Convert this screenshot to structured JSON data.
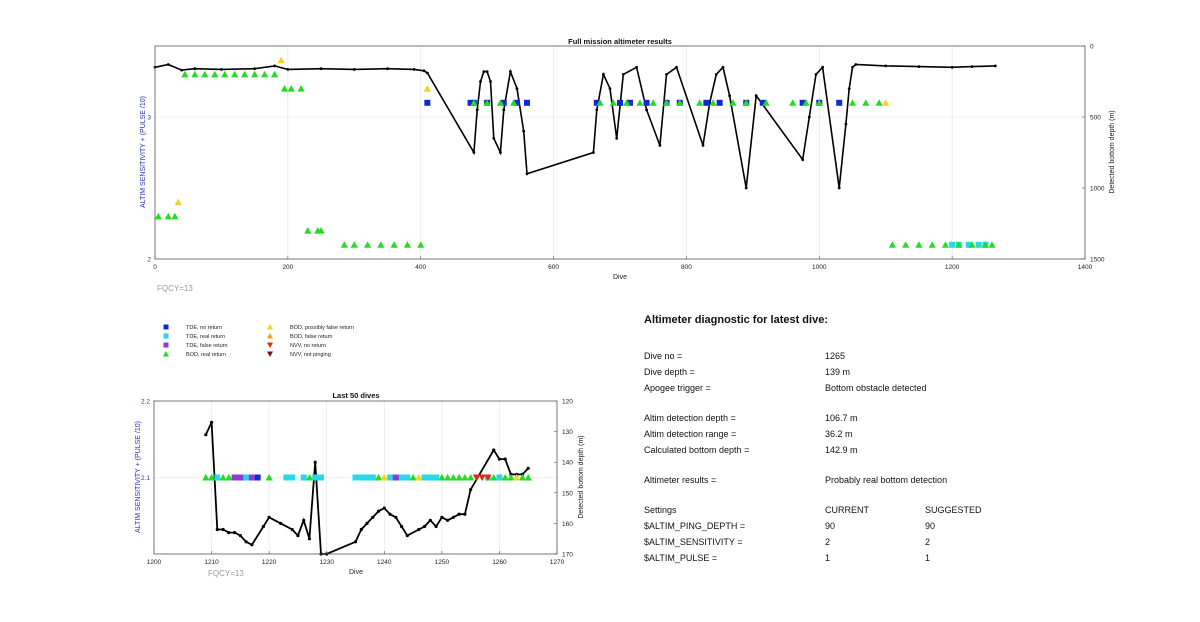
{
  "top_chart": {
    "title": "Full mission altimeter results",
    "xlabel": "Dive",
    "ylabel_left": "ALTIM SENSITIVITY + (PULSE /10)",
    "ylabel_right": "Detected bottom depth (m)",
    "x_ticks": [
      "0",
      "200",
      "400",
      "600",
      "800",
      "1000",
      "1200",
      "1400"
    ],
    "y_left_ticks": [
      "2",
      "3"
    ],
    "y_right_ticks": [
      "0",
      "500",
      "1000",
      "1500"
    ],
    "footnote": "FQCY=13"
  },
  "legend": {
    "items": [
      {
        "label": "TDE, no return",
        "color": "#0a2bd6",
        "marker": "square"
      },
      {
        "label": "TDE, real return",
        "color": "#27d8e6",
        "marker": "square"
      },
      {
        "label": "TDE, false return",
        "color": "#8a3fd1",
        "marker": "square"
      },
      {
        "label": "BOD, real return",
        "color": "#22dd22",
        "marker": "triangle-up"
      },
      {
        "label": "BOD, possibly false return",
        "color": "#f2d21b",
        "marker": "triangle-up"
      },
      {
        "label": "BOD, false return",
        "color": "#f0a020",
        "marker": "triangle-up"
      },
      {
        "label": "NVV, no return",
        "color": "#e02b10",
        "marker": "triangle-down"
      },
      {
        "label": "NVV, not pinging",
        "color": "#7a1010",
        "marker": "triangle-down"
      }
    ]
  },
  "bottom_chart": {
    "title": "Last 50 dives",
    "xlabel": "Dive",
    "ylabel_left": "ALTIM SENSITIVITY + (PULSE /10)",
    "ylabel_right": "Detected bottom depth (m)",
    "x_ticks": [
      "1200",
      "1210",
      "1220",
      "1230",
      "1240",
      "1250",
      "1260",
      "1270"
    ],
    "y_left_ticks": [
      "2.1",
      "2.2"
    ],
    "y_right_ticks": [
      "120",
      "130",
      "140",
      "150",
      "160",
      "170"
    ],
    "footnote": "FQCY=13"
  },
  "diagnostic": {
    "title": "Altimeter diagnostic for latest dive:",
    "dive_no_label": "Dive no =",
    "dive_no": "1265",
    "dive_depth_label": "Dive depth =",
    "dive_depth": "139 m",
    "apogee_label": "Apogee trigger =",
    "apogee": "Bottom obstacle detected",
    "det_depth_label": "Altim detection depth =",
    "det_depth": "106.7 m",
    "det_range_label": "Altim detection range =",
    "det_range": "36.2 m",
    "calc_depth_label": "Calculated bottom depth =",
    "calc_depth": "142.9 m",
    "results_label": "Altimeter results =",
    "results": "Probably real bottom detection",
    "settings_label": "Settings",
    "current_label": "CURRENT",
    "suggested_label": "SUGGESTED",
    "settings": [
      {
        "name": "$ALTIM_PING_DEPTH =",
        "current": "90",
        "suggested": "90"
      },
      {
        "name": "$ALTIM_SENSITIVITY =",
        "current": "2",
        "suggested": "2"
      },
      {
        "name": "$ALTIM_PULSE =",
        "current": "1",
        "suggested": "1"
      }
    ]
  },
  "chart_data": [
    {
      "type": "scatter",
      "title": "Full mission altimeter results",
      "xlabel": "Dive",
      "ylabel": "ALTIM SENSITIVITY + (PULSE /10)",
      "ylabel_right": "Detected bottom depth (m)",
      "xlim": [
        0,
        1400
      ],
      "ylim_left": [
        2,
        3.5
      ],
      "ylim_right": [
        1500,
        0
      ],
      "grid": true,
      "series": [
        {
          "name": "TDE, no return",
          "x": [
            410,
            475,
            480,
            500,
            525,
            545,
            560,
            665,
            700,
            715,
            740,
            770,
            790,
            830,
            850,
            890,
            915,
            975,
            1000,
            1030
          ],
          "y": [
            3.1,
            3.1,
            3.1,
            3.1,
            3.1,
            3.1,
            3.1,
            3.1,
            3.1,
            3.1,
            3.1,
            3.1,
            3.1,
            3.1,
            3.1,
            3.1,
            3.1,
            3.1,
            3.1,
            3.1
          ]
        },
        {
          "name": "TDE, real return",
          "x": [
            1200,
            1210,
            1225,
            1240,
            1250
          ],
          "y": [
            2.1,
            2.1,
            2.1,
            2.1,
            2.1
          ]
        },
        {
          "name": "BOD, real return",
          "x": [
            5,
            20,
            30,
            45,
            60,
            75,
            90,
            105,
            120,
            135,
            150,
            165,
            180,
            195,
            205,
            220,
            230,
            245,
            250,
            285,
            300,
            320,
            340,
            360,
            380,
            400,
            480,
            500,
            520,
            540,
            670,
            690,
            710,
            730,
            750,
            770,
            790,
            820,
            840,
            870,
            890,
            920,
            960,
            980,
            1000,
            1050,
            1070,
            1090,
            1110,
            1130,
            1150,
            1170,
            1190,
            1210,
            1230,
            1250,
            1260
          ],
          "y": [
            2.3,
            2.3,
            2.3,
            3.3,
            3.3,
            3.3,
            3.3,
            3.3,
            3.3,
            3.3,
            3.3,
            3.3,
            3.3,
            3.2,
            3.2,
            3.2,
            2.2,
            2.2,
            2.2,
            2.1,
            2.1,
            2.1,
            2.1,
            2.1,
            2.1,
            2.1,
            3.1,
            3.1,
            3.1,
            3.1,
            3.1,
            3.1,
            3.1,
            3.1,
            3.1,
            3.1,
            3.1,
            3.1,
            3.1,
            3.1,
            3.1,
            3.1,
            3.1,
            3.1,
            3.1,
            3.1,
            3.1,
            3.1,
            2.1,
            2.1,
            2.1,
            2.1,
            2.1,
            2.1,
            2.1,
            2.1,
            2.1
          ]
        },
        {
          "name": "BOD, possibly false return",
          "x": [
            35,
            190,
            410,
            1100
          ],
          "y": [
            2.4,
            3.4,
            3.2,
            3.1
          ]
        },
        {
          "name": "Detected bottom depth",
          "x": [
            0,
            20,
            40,
            60,
            100,
            150,
            180,
            200,
            250,
            300,
            350,
            390,
            405,
            410,
            480,
            485,
            490,
            495,
            500,
            505,
            510,
            520,
            525,
            535,
            545,
            555,
            560,
            660,
            665,
            675,
            685,
            695,
            705,
            725,
            740,
            760,
            770,
            785,
            825,
            835,
            845,
            855,
            865,
            890,
            905,
            975,
            985,
            995,
            1005,
            1030,
            1040,
            1045,
            1050,
            1055,
            1100,
            1150,
            1200,
            1230,
            1265
          ],
          "y": [
            150,
            130,
            170,
            160,
            165,
            160,
            140,
            165,
            160,
            165,
            160,
            165,
            175,
            190,
            750,
            450,
            250,
            180,
            180,
            250,
            650,
            750,
            450,
            180,
            300,
            600,
            900,
            750,
            450,
            200,
            300,
            650,
            200,
            150,
            450,
            700,
            200,
            150,
            700,
            400,
            200,
            150,
            350,
            1000,
            350,
            800,
            500,
            200,
            150,
            1000,
            550,
            300,
            150,
            130,
            140,
            145,
            150,
            145,
            140
          ]
        }
      ]
    },
    {
      "type": "scatter",
      "title": "Last 50 dives",
      "xlabel": "Dive",
      "ylabel": "ALTIM SENSITIVITY + (PULSE /10)",
      "ylabel_right": "Detected bottom depth (m)",
      "xlim": [
        1200,
        1270
      ],
      "ylim_left": [
        2.0,
        2.2
      ],
      "ylim_right": [
        170,
        120
      ],
      "grid": true,
      "series": [
        {
          "name": "TDE, no return",
          "x": [
            1218
          ],
          "y": [
            2.1
          ]
        },
        {
          "name": "TDE, real return",
          "x": [
            1211,
            1216,
            1223,
            1224,
            1226,
            1228,
            1229,
            1235,
            1236,
            1237,
            1238,
            1241,
            1243,
            1244,
            1247,
            1248,
            1249,
            1258,
            1260
          ],
          "y": [
            2.1,
            2.1,
            2.1,
            2.1,
            2.1,
            2.1,
            2.1,
            2.1,
            2.1,
            2.1,
            2.1,
            2.1,
            2.1,
            2.1,
            2.1,
            2.1,
            2.1,
            2.1,
            2.1
          ]
        },
        {
          "name": "TDE, false return",
          "x": [
            1214,
            1215,
            1217,
            1242
          ],
          "y": [
            2.1,
            2.1,
            2.1,
            2.1
          ]
        },
        {
          "name": "BOD, real return",
          "x": [
            1209,
            1210,
            1212,
            1213,
            1220,
            1227,
            1239,
            1245,
            1250,
            1251,
            1252,
            1253,
            1254,
            1255,
            1259,
            1261,
            1262,
            1264,
            1265
          ],
          "y": [
            2.1,
            2.1,
            2.1,
            2.1,
            2.1,
            2.1,
            2.1,
            2.1,
            2.1,
            2.1,
            2.1,
            2.1,
            2.1,
            2.1,
            2.1,
            2.1,
            2.1,
            2.1,
            2.1
          ]
        },
        {
          "name": "BOD, possibly false return",
          "x": [
            1240,
            1246,
            1263
          ],
          "y": [
            2.1,
            2.1,
            2.1
          ]
        },
        {
          "name": "NVV, no return",
          "x": [
            1256,
            1257,
            1258
          ],
          "y": [
            2.1,
            2.1,
            2.1
          ]
        },
        {
          "name": "Detected bottom depth",
          "x": [
            1209,
            1210,
            1211,
            1212,
            1213,
            1214,
            1215,
            1216,
            1217,
            1219,
            1220,
            1222,
            1224,
            1225,
            1226,
            1227,
            1228,
            1229,
            1230,
            1235,
            1236,
            1237,
            1238,
            1239,
            1240,
            1241,
            1242,
            1243,
            1244,
            1246,
            1247,
            1248,
            1249,
            1250,
            1251,
            1252,
            1253,
            1254,
            1255,
            1259,
            1260,
            1261,
            1262,
            1263,
            1264,
            1265
          ],
          "y": [
            131,
            127,
            162,
            162,
            163,
            163,
            164,
            166,
            167,
            161,
            158,
            160,
            162,
            164,
            159,
            165,
            140,
            170,
            170,
            166,
            162,
            160,
            158,
            156,
            155,
            157,
            158,
            161,
            164,
            162,
            161,
            159,
            161,
            158,
            159,
            158,
            157,
            157,
            149,
            136,
            139,
            139,
            144,
            144,
            144,
            142
          ]
        }
      ]
    }
  ]
}
